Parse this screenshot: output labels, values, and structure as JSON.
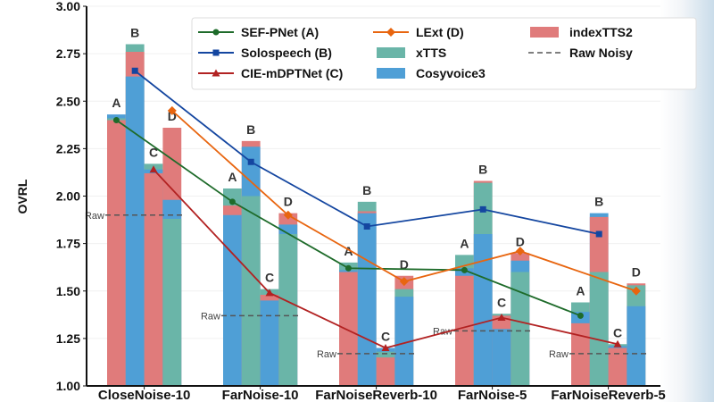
{
  "chart_data": {
    "type": "bar",
    "ylabel": "OVRL",
    "ylim": [
      1.0,
      3.0
    ],
    "yticks": [
      "1.00",
      "1.25",
      "1.50",
      "1.75",
      "2.00",
      "2.25",
      "2.50",
      "2.75",
      "3.00"
    ],
    "grid": true,
    "legend_position": "top-right",
    "categories": [
      "CloseNoise-10",
      "FarNoise-10",
      "FarNoiseReverb-10",
      "FarNoise-5",
      "FarNoiseReverb-5"
    ],
    "bar_letters": [
      "A",
      "B",
      "C",
      "D"
    ],
    "raw_label": "Raw",
    "bar_series": [
      {
        "name": "indexTTS2",
        "color": "#e07b7b",
        "values": [
          [
            2.4,
            2.76,
            2.12,
            2.36
          ],
          [
            1.95,
            2.29,
            1.48,
            1.91
          ],
          [
            1.6,
            1.92,
            1.15,
            1.58
          ],
          [
            1.58,
            2.08,
            1.37,
            1.7
          ],
          [
            1.33,
            1.89,
            1.2,
            1.54
          ]
        ]
      },
      {
        "name": "xTTS",
        "color": "#6ab5a8",
        "values": [
          [
            2.41,
            2.8,
            2.17,
            1.88
          ],
          [
            2.04,
            2.0,
            1.51,
            1.8
          ],
          [
            1.65,
            1.97,
            1.18,
            1.51
          ],
          [
            1.69,
            2.07,
            1.38,
            1.6
          ],
          [
            1.44,
            1.6,
            1.22,
            1.53
          ]
        ]
      },
      {
        "name": "Cosyvoice3",
        "color": "#4f9fd6",
        "values": [
          [
            2.43,
            2.63,
            2.14,
            1.98
          ],
          [
            1.9,
            2.26,
            1.45,
            1.85
          ],
          [
            1.61,
            1.91,
            1.2,
            1.47
          ],
          [
            1.62,
            1.8,
            1.3,
            1.66
          ],
          [
            1.39,
            1.91,
            1.21,
            1.42
          ]
        ]
      }
    ],
    "line_series": [
      {
        "name": "SEF-PNet (A)",
        "color": "#1e6b2a",
        "marker": "circle",
        "values": [
          2.4,
          1.97,
          1.62,
          1.61,
          1.37
        ]
      },
      {
        "name": "Solospeech (B)",
        "color": "#1446a0",
        "marker": "square",
        "values": [
          2.66,
          2.18,
          1.84,
          1.93,
          1.8
        ]
      },
      {
        "name": "CIE-mDPTNet (C)",
        "color": "#b22222",
        "marker": "triangle",
        "values": [
          2.14,
          1.49,
          1.2,
          1.36,
          1.22
        ]
      },
      {
        "name": "LExt (D)",
        "color": "#e8650f",
        "marker": "diamond",
        "values": [
          2.45,
          1.9,
          1.55,
          1.71,
          1.5
        ]
      }
    ],
    "raw_noisy": {
      "name": "Raw Noisy",
      "color": "#555555",
      "values": [
        1.9,
        1.37,
        1.17,
        1.29,
        1.17
      ]
    }
  }
}
